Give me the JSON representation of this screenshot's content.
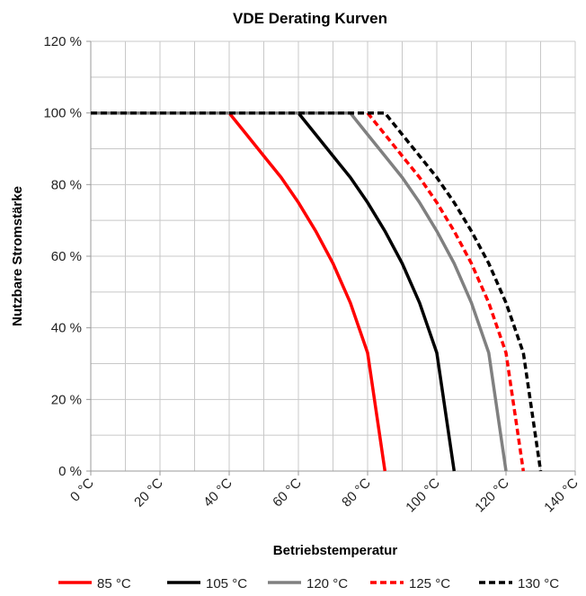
{
  "chart_data": {
    "type": "line",
    "title": "VDE Derating Kurven",
    "xlabel": "Betriebstemperatur",
    "ylabel": "Nutzbare Stromstärke",
    "xlim": [
      0,
      140
    ],
    "ylim": [
      0,
      120
    ],
    "x_ticks": [
      "0 °C",
      "20 °C",
      "40 °C",
      "60 °C",
      "80 °C",
      "100 °C",
      "120 °C",
      "140 °C"
    ],
    "y_ticks": [
      "0 %",
      "20 %",
      "40 %",
      "60 %",
      "80 %",
      "100 %",
      "120 %"
    ],
    "x_tick_values": [
      0,
      20,
      40,
      60,
      80,
      100,
      120,
      140
    ],
    "y_tick_values": [
      0,
      20,
      40,
      60,
      80,
      100,
      120
    ],
    "x_minor_grid_step": 10,
    "y_minor_grid_step": 10,
    "grid": true,
    "legend_position": "bottom",
    "series": [
      {
        "name": "85 °C",
        "color": "#ff0000",
        "dash": "solid",
        "points": [
          [
            0,
            100
          ],
          [
            40,
            100
          ],
          [
            45,
            94
          ],
          [
            50,
            88
          ],
          [
            55,
            82
          ],
          [
            60,
            75
          ],
          [
            65,
            67
          ],
          [
            70,
            58
          ],
          [
            75,
            47
          ],
          [
            80,
            33
          ],
          [
            85,
            0
          ]
        ]
      },
      {
        "name": "105 °C",
        "color": "#000000",
        "dash": "solid",
        "points": [
          [
            0,
            100
          ],
          [
            60,
            100
          ],
          [
            65,
            94
          ],
          [
            70,
            88
          ],
          [
            75,
            82
          ],
          [
            80,
            75
          ],
          [
            85,
            67
          ],
          [
            90,
            58
          ],
          [
            95,
            47
          ],
          [
            100,
            33
          ],
          [
            105,
            0
          ]
        ]
      },
      {
        "name": "120 °C",
        "color": "#808080",
        "dash": "solid",
        "points": [
          [
            0,
            100
          ],
          [
            75,
            100
          ],
          [
            80,
            94
          ],
          [
            85,
            88
          ],
          [
            90,
            82
          ],
          [
            95,
            75
          ],
          [
            100,
            67
          ],
          [
            105,
            58
          ],
          [
            110,
            47
          ],
          [
            115,
            33
          ],
          [
            120,
            0
          ]
        ]
      },
      {
        "name": "125 °C",
        "color": "#ff0000",
        "dash": "dashed",
        "points": [
          [
            0,
            100
          ],
          [
            80,
            100
          ],
          [
            85,
            94
          ],
          [
            90,
            88
          ],
          [
            95,
            82
          ],
          [
            100,
            75
          ],
          [
            105,
            67
          ],
          [
            110,
            58
          ],
          [
            115,
            47
          ],
          [
            120,
            33
          ],
          [
            125,
            0
          ]
        ]
      },
      {
        "name": "130 °C",
        "color": "#000000",
        "dash": "dashed",
        "points": [
          [
            0,
            100
          ],
          [
            85,
            100
          ],
          [
            90,
            94
          ],
          [
            95,
            88
          ],
          [
            100,
            82
          ],
          [
            105,
            75
          ],
          [
            110,
            67
          ],
          [
            115,
            58
          ],
          [
            120,
            47
          ],
          [
            125,
            33
          ],
          [
            130,
            0
          ]
        ]
      }
    ]
  }
}
